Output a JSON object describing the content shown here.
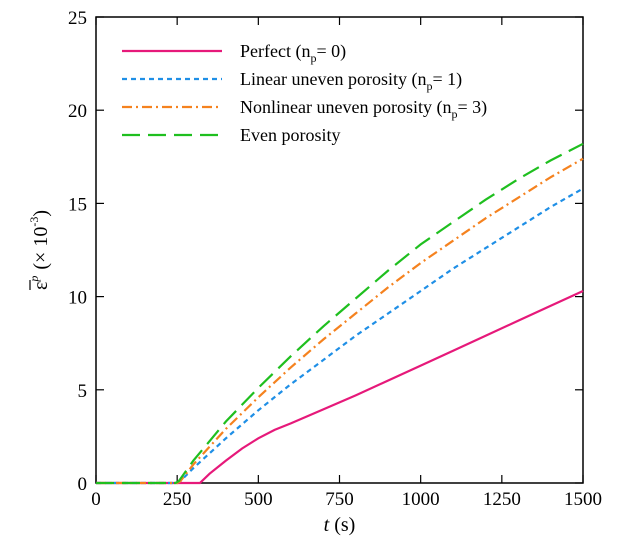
{
  "chart_data": {
    "type": "line",
    "xlabel": {
      "var": "t",
      "unit": " (s)"
    },
    "ylabel": {
      "var": "ε",
      "sup": "p",
      "unit_prefix": "(× 10",
      "unit_exp": "-3",
      "unit_suffix": ")"
    },
    "xlim": [
      0,
      1500
    ],
    "ylim": [
      0,
      25
    ],
    "x_ticks": [
      0,
      250,
      500,
      750,
      1000,
      1250,
      1500
    ],
    "y_ticks": [
      0,
      5,
      10,
      15,
      20,
      25
    ],
    "grid": false,
    "legend_position": "top-left",
    "series": [
      {
        "name": "Perfect (np= 0)",
        "label_parts": {
          "pre": "Perfect (n",
          "sub": "p",
          "post": "= 0)"
        },
        "color": "#e6197a",
        "dash": "solid",
        "x": [
          0,
          320,
          350,
          400,
          450,
          500,
          550,
          600,
          700,
          800,
          900,
          1000,
          1100,
          1200,
          1300,
          1400,
          1500
        ],
        "y": [
          0,
          0,
          0.5,
          1.2,
          1.85,
          2.4,
          2.85,
          3.2,
          3.95,
          4.7,
          5.5,
          6.3,
          7.1,
          7.9,
          8.7,
          9.5,
          10.3
        ]
      },
      {
        "name": "Linear uneven porosity (np= 1)",
        "label_parts": {
          "pre": "Linear uneven porosity (n",
          "sub": "p",
          "post": "= 1)"
        },
        "color": "#1f8fe6",
        "dash": "dotted",
        "x": [
          0,
          250,
          260,
          300,
          400,
          500,
          600,
          700,
          800,
          900,
          1000,
          1100,
          1200,
          1300,
          1400,
          1500
        ],
        "y": [
          0,
          0,
          0.1,
          0.8,
          2.4,
          3.9,
          5.3,
          6.6,
          7.9,
          9.1,
          10.3,
          11.5,
          12.6,
          13.7,
          14.8,
          15.8
        ]
      },
      {
        "name": "Nonlinear uneven porosity (np= 3)",
        "label_parts": {
          "pre": "Nonlinear uneven porosity (n",
          "sub": "p",
          "post": "= 3)"
        },
        "color": "#f5821f",
        "dash": "dashdot",
        "x": [
          0,
          250,
          260,
          300,
          400,
          500,
          600,
          700,
          800,
          900,
          1000,
          1100,
          1200,
          1300,
          1400,
          1500
        ],
        "y": [
          0,
          0,
          0.1,
          1.0,
          2.9,
          4.6,
          6.2,
          7.7,
          9.1,
          10.5,
          11.8,
          13.0,
          14.2,
          15.3,
          16.4,
          17.4
        ]
      },
      {
        "name": "Even porosity",
        "label_parts": {
          "pre": "Even porosity",
          "sub": "",
          "post": ""
        },
        "color": "#1fbf1f",
        "dash": "longdash",
        "x": [
          0,
          245,
          255,
          300,
          400,
          500,
          600,
          700,
          800,
          900,
          1000,
          1100,
          1200,
          1300,
          1400,
          1500
        ],
        "y": [
          0,
          0,
          0.1,
          1.2,
          3.3,
          5.1,
          6.8,
          8.4,
          9.9,
          11.4,
          12.8,
          14.0,
          15.2,
          16.3,
          17.3,
          18.2
        ]
      }
    ]
  }
}
